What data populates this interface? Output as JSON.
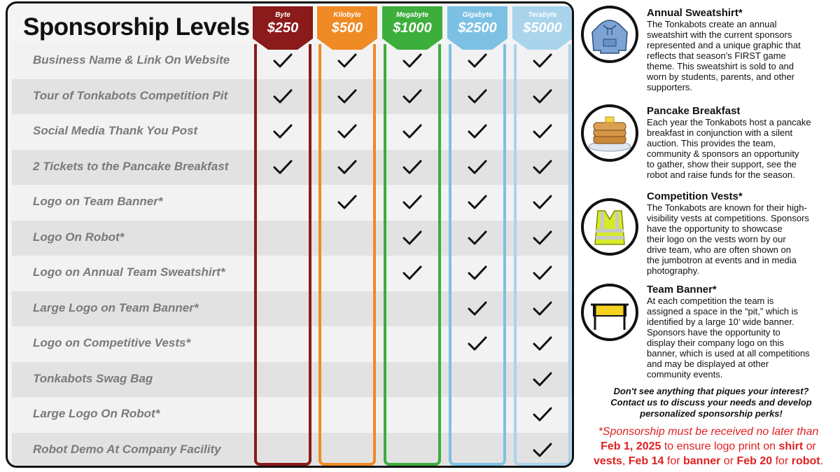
{
  "title": "Sponsorship Levels",
  "tiers": [
    {
      "name": "Byte",
      "price": "$250",
      "color": "#8b1a1a"
    },
    {
      "name": "Kilobyte",
      "price": "$500",
      "color": "#f08a24"
    },
    {
      "name": "Megabyte",
      "price": "$1000",
      "color": "#3cae3c"
    },
    {
      "name": "Gigabyte",
      "price": "$2500",
      "color": "#7cc1e4"
    },
    {
      "name": "Terabyte",
      "price": "$5000",
      "color": "#a9d4ec"
    }
  ],
  "benefits": [
    {
      "label": "Business Name & Link On Website",
      "checks": [
        true,
        true,
        true,
        true,
        true
      ]
    },
    {
      "label": "Tour of Tonkabots Competition Pit",
      "checks": [
        true,
        true,
        true,
        true,
        true
      ]
    },
    {
      "label": "Social Media Thank You Post",
      "checks": [
        true,
        true,
        true,
        true,
        true
      ]
    },
    {
      "label": "2 Tickets to the Pancake Breakfast",
      "checks": [
        true,
        true,
        true,
        true,
        true
      ]
    },
    {
      "label": "Logo on Team Banner*",
      "checks": [
        false,
        true,
        true,
        true,
        true
      ]
    },
    {
      "label": "Logo On Robot*",
      "checks": [
        false,
        false,
        true,
        true,
        true
      ]
    },
    {
      "label": "Logo on Annual Team Sweatshirt*",
      "checks": [
        false,
        false,
        true,
        true,
        true
      ]
    },
    {
      "label": "Large Logo on Team Banner*",
      "checks": [
        false,
        false,
        false,
        true,
        true
      ]
    },
    {
      "label": "Logo on Competitive Vests*",
      "checks": [
        false,
        false,
        false,
        true,
        true
      ]
    },
    {
      "label": "Tonkabots Swag Bag",
      "checks": [
        false,
        false,
        false,
        false,
        true
      ]
    },
    {
      "label": "Large Logo On Robot*",
      "checks": [
        false,
        false,
        false,
        false,
        true
      ]
    },
    {
      "label": "Robot Demo At Company Facility",
      "checks": [
        false,
        false,
        false,
        false,
        true
      ]
    }
  ],
  "perks": [
    {
      "title": "Annual Sweatshirt*",
      "icon": "sweatshirt-icon",
      "lines": [
        "The Tonkabots create an annual",
        "sweatshirt with the current sponsors",
        "represented and a unique graphic that",
        "reflects that season's FIRST game",
        "theme. This sweatshirt is sold to and",
        "worn by students, parents, and other",
        "supporters."
      ]
    },
    {
      "title": "Pancake Breakfast",
      "icon": "pancake-icon",
      "lines": [
        "Each year the Tonkabots host a pancake",
        "breakfast in conjunction with a silent",
        "auction. This provides the team,",
        "community & sponsors an opportunity",
        "to gather, show their support, see the",
        "robot and raise funds for the season."
      ]
    },
    {
      "title": "Competition Vests*",
      "icon": "vest-icon",
      "lines": [
        "The Tonkabots are known for their high-",
        "visibility vests at competitions. Sponsors",
        "have the opportunity to showcase",
        "their logo on the vests worn by our",
        "drive team, who are often shown on",
        "the jumbotron at events and in media",
        "photography."
      ]
    },
    {
      "title": "Team Banner*",
      "icon": "banner-icon",
      "lines": [
        "At each competition the team is",
        "assigned a space in the “pit,” which is",
        "identified by a large 10’ wide banner.",
        "Sponsors have the opportunity to",
        "display their company logo on this",
        "banner, which is used at all competitions",
        "and may be displayed at other",
        "community events."
      ]
    }
  ],
  "contact": {
    "line1": "Don't see anything that piques your interest?",
    "line2": "Contact us to discuss your needs and develop",
    "line3": "personalized sponsorship perks!"
  },
  "deadline": {
    "line1": "*Sponsorship must be received no later than",
    "date1": "Feb 1, 2025",
    "mid1": " to ensure logo print on ",
    "item1": "shirt",
    "mid2": " or",
    "item2": "vests",
    "mid3": ", ",
    "date2": "Feb 14",
    "mid4": " for ",
    "item3": "banner",
    "mid5": " or ",
    "date3": "Feb 20",
    "mid6": " for ",
    "item4": "robot",
    "end": "."
  }
}
